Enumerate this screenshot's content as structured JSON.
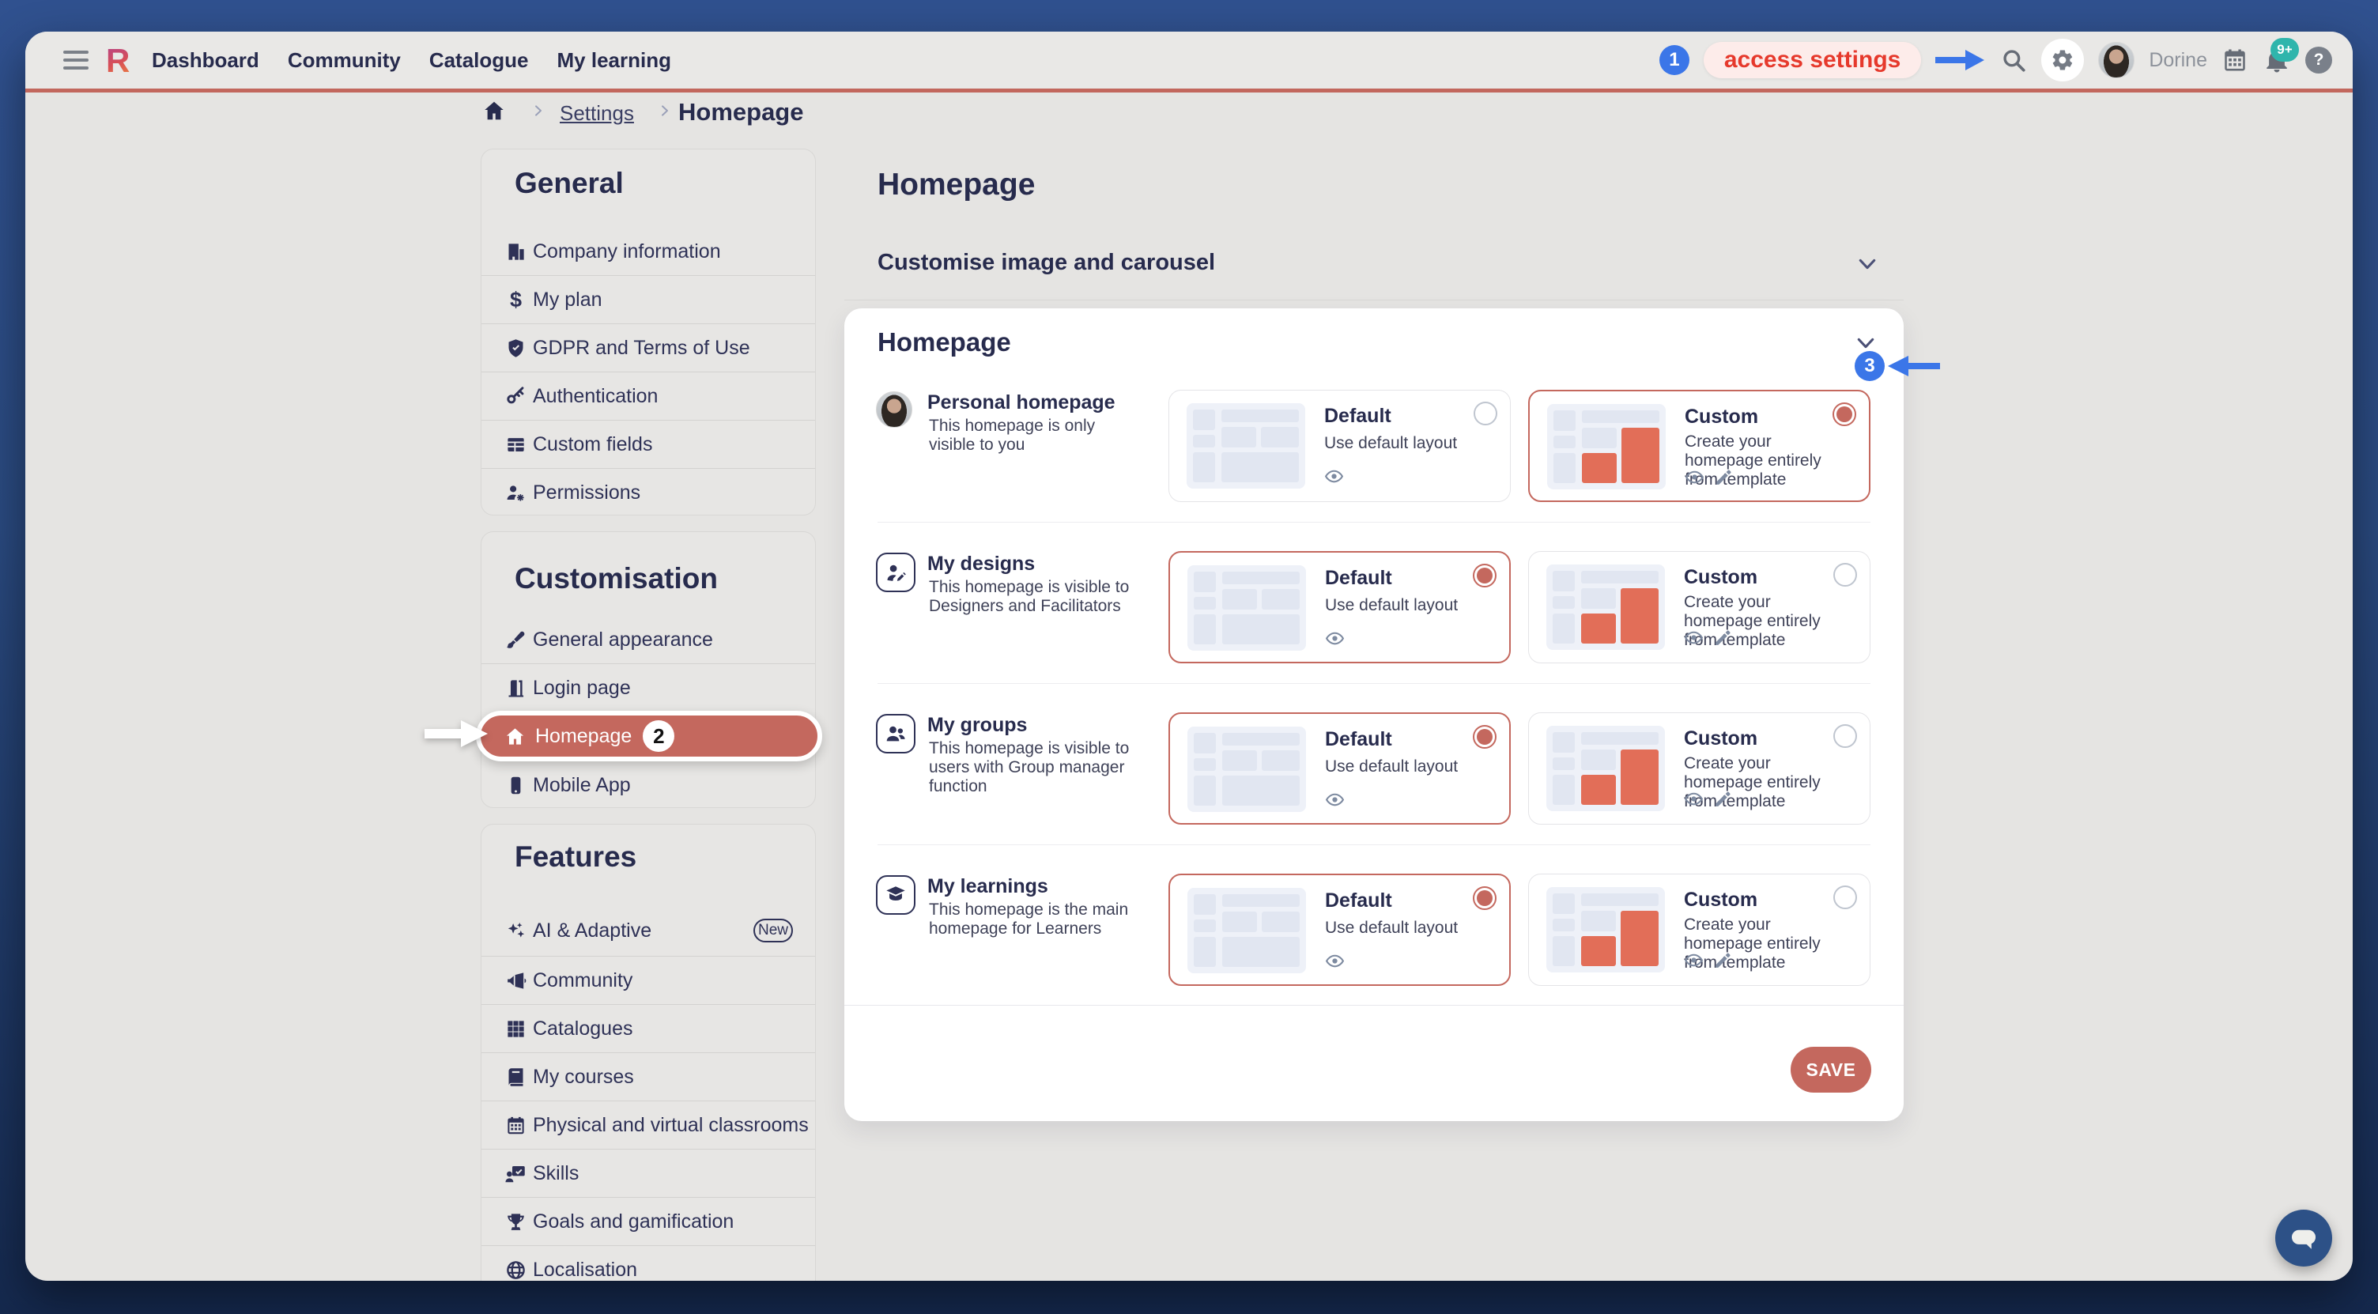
{
  "topbar": {
    "logo": "R",
    "nav": [
      {
        "label": "Dashboard"
      },
      {
        "label": "Community"
      },
      {
        "label": "Catalogue"
      },
      {
        "label": "My learning"
      }
    ],
    "user": {
      "name": "Dorine"
    },
    "notifications": {
      "badge": "9+"
    },
    "help_label": "?"
  },
  "annotations": {
    "step1": {
      "number": "1",
      "label": "access settings"
    },
    "step2": {
      "number": "2"
    },
    "step3": {
      "number": "3"
    },
    "accent_blue": "#3b76e8",
    "label_red": "#e6392c"
  },
  "breadcrumb": {
    "items": [
      "Settings",
      "Homepage"
    ]
  },
  "sidebar": {
    "sections": [
      {
        "title": "General",
        "items": [
          {
            "icon": "building",
            "label": "Company information"
          },
          {
            "icon": "dollar",
            "label": "My plan"
          },
          {
            "icon": "shield",
            "label": "GDPR and Terms of Use"
          },
          {
            "icon": "key",
            "label": "Authentication"
          },
          {
            "icon": "table",
            "label": "Custom fields"
          },
          {
            "icon": "person-gear",
            "label": "Permissions"
          }
        ]
      },
      {
        "title": "Customisation",
        "items": [
          {
            "icon": "brush",
            "label": "General appearance"
          },
          {
            "icon": "door",
            "label": "Login page"
          },
          {
            "icon": "home",
            "label": "Homepage",
            "active": true,
            "badge": "2"
          },
          {
            "icon": "mobile",
            "label": "Mobile App"
          }
        ]
      },
      {
        "title": "Features",
        "items": [
          {
            "icon": "sparkles",
            "label": "AI & Adaptive",
            "badge": "New"
          },
          {
            "icon": "megaphone",
            "label": "Community"
          },
          {
            "icon": "grid",
            "label": "Catalogues"
          },
          {
            "icon": "book",
            "label": "My courses"
          },
          {
            "icon": "calendar",
            "label": "Physical and virtual classrooms"
          },
          {
            "icon": "skills",
            "label": "Skills"
          },
          {
            "icon": "trophy",
            "label": "Goals and gamification"
          },
          {
            "icon": "globe",
            "label": "Localisation"
          }
        ]
      }
    ]
  },
  "main": {
    "page_title": "Homepage",
    "sections": [
      {
        "title": "Customise image and carousel",
        "collapsed": true
      }
    ],
    "panel": {
      "title": "Homepage",
      "options": {
        "default": {
          "title": "Default",
          "description": "Use default layout"
        },
        "custom": {
          "title": "Custom",
          "description": "Create your homepage entirely from template"
        }
      },
      "rows": [
        {
          "title": "Personal homepage",
          "description": "This homepage is only visible to you",
          "selected": "custom"
        },
        {
          "title": "My designs",
          "description": "This homepage is visible to Designers and Facilitators",
          "selected": "default"
        },
        {
          "title": "My groups",
          "description": "This homepage is visible to users with Group manager function",
          "selected": "default"
        },
        {
          "title": "My learnings",
          "description": "This homepage is the main homepage for Learners",
          "selected": "default"
        }
      ],
      "save_label": "SAVE"
    }
  },
  "colors": {
    "accent_salmon": "#c4685e",
    "navy": "#272b4d",
    "thumb_red": "#e26e58",
    "badge_teal": "#2fb5ac",
    "topbar_blue_top": "#30518f",
    "topbar_blue_bottom": "#15294e"
  }
}
